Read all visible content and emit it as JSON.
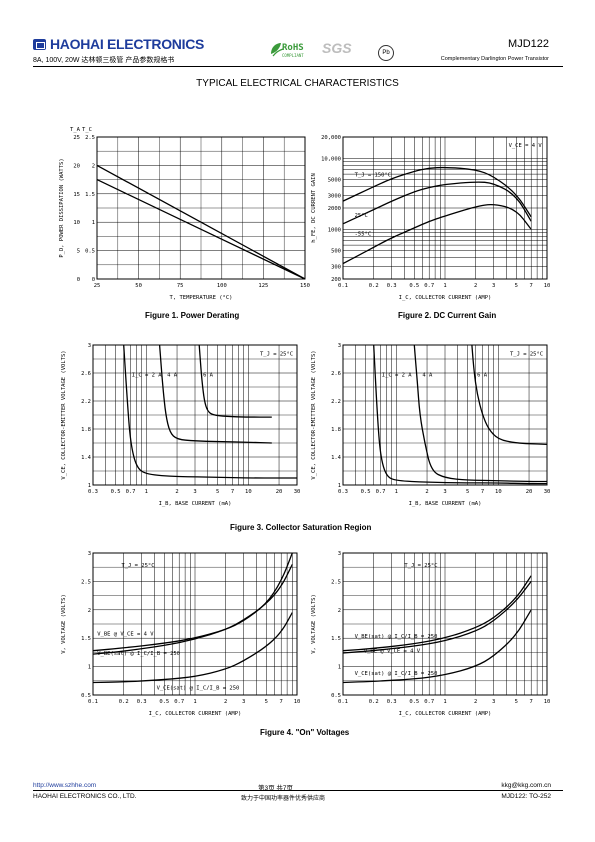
{
  "header": {
    "brand": "HAOHAI ELECTRONICS",
    "subtitle": "8A, 100V, 20W  达林顿三极管  产品参数规格书",
    "rohs": "RoHS",
    "rohs_sub": "COMPLIANT",
    "sgs": "SGS",
    "pb": "Pb",
    "part": "MJD122",
    "description": "Complementary Darlington Power Transistor"
  },
  "page_title": "TYPICAL ELECTRICAL CHARACTERISTICS",
  "figures": {
    "fig1_caption": "Figure 1. Power Derating",
    "fig2_caption": "Figure 2. DC Current Gain",
    "fig3_caption": "Figure 3. Collector Saturation Region",
    "fig4_caption": "Figure 4. \"On\" Voltages"
  },
  "footer": {
    "left_url": "http://www.szhhe.com",
    "left_company": "HAOHAI ELECTRONICS CO., LTD.",
    "center_page": "第3页 共7页",
    "center_slogan": "致力于中国功率器件优秀供应商",
    "right_email": "kkg@kkg.com.cn",
    "right_part": "MJD122: TO-252"
  },
  "chart_data": [
    {
      "type": "line",
      "title": "Figure 1. Power Derating",
      "xlabel": "T, TEMPERATURE (°C)",
      "ylabel": "P_D, POWER DISSIPATION (WATTS)",
      "xlim": [
        25,
        150
      ],
      "x_ticks": [
        "25",
        "50",
        "75",
        "100",
        "125",
        "150"
      ],
      "y_left_label": "T_A",
      "y_left_ticks": [
        "0",
        "0.5",
        "1",
        "1.5",
        "2",
        "2.5"
      ],
      "y_right_label": "T_C",
      "y_right_ticks": [
        "0",
        "5",
        "10",
        "15",
        "20",
        "25"
      ],
      "annotations": [
        "T_C",
        "T_A",
        "SURFACE",
        "MOUNT"
      ],
      "series": [
        {
          "name": "T_C",
          "x": [
            25,
            150
          ],
          "y": [
            20,
            0
          ]
        },
        {
          "name": "T_A",
          "x": [
            25,
            150
          ],
          "y": [
            1.75,
            0
          ]
        }
      ]
    },
    {
      "type": "line",
      "title": "Figure 2. DC Current Gain",
      "xlabel": "I_C, COLLECTOR CURRENT (AMP)",
      "ylabel": "h_FE, DC CURRENT GAIN",
      "log_x": true,
      "log_y": true,
      "xlim": [
        0.1,
        10
      ],
      "ylim": [
        200,
        20000
      ],
      "x_ticks": [
        "0.1",
        "0.2",
        "0.3",
        "0.5",
        "0.7",
        "1",
        "2",
        "3",
        "5",
        "7",
        "10"
      ],
      "y_ticks": [
        "200",
        "300",
        "500",
        "1000",
        "2000",
        "3000",
        "5000",
        "10,000",
        "20,000"
      ],
      "annotations": [
        "V_CE = 4 V",
        "T_J = 150°C",
        "25°C",
        "-55°C"
      ],
      "series": [
        {
          "name": "T_J = 150°C",
          "x": [
            0.1,
            0.2,
            0.3,
            0.5,
            0.7,
            1,
            2,
            3,
            5,
            7
          ],
          "y": [
            2500,
            4000,
            5200,
            6600,
            7300,
            7500,
            7000,
            5600,
            3200,
            1500
          ]
        },
        {
          "name": "25°C",
          "x": [
            0.1,
            0.2,
            0.3,
            0.5,
            0.7,
            1,
            2,
            3,
            5,
            7
          ],
          "y": [
            1200,
            1900,
            2500,
            3400,
            3900,
            4300,
            4700,
            4500,
            3000,
            1300
          ]
        },
        {
          "name": "-55°C",
          "x": [
            0.1,
            0.2,
            0.3,
            0.5,
            0.7,
            1,
            2,
            3,
            5,
            7
          ],
          "y": [
            330,
            560,
            760,
            1050,
            1300,
            1550,
            2100,
            2300,
            1900,
            1000
          ]
        }
      ]
    },
    {
      "type": "line",
      "title": "Figure 3. Collector Saturation Region (left)",
      "xlabel": "I_B, BASE CURRENT (mA)",
      "ylabel": "V_CE, COLLECTOR-EMITTER VOLTAGE (VOLTS)",
      "log_x": true,
      "xlim": [
        0.3,
        30
      ],
      "ylim": [
        1,
        3
      ],
      "x_ticks": [
        "0.3",
        "0.5",
        "0.7",
        "1",
        "2",
        "3",
        "5",
        "7",
        "10",
        "20",
        "30"
      ],
      "y_ticks": [
        "1",
        "1.4",
        "1.8",
        "2.2",
        "2.6",
        "3"
      ],
      "annotations": [
        "T_J = 25°C",
        "I_C = 2 A",
        "4 A",
        "6 A"
      ],
      "series": [
        {
          "name": "I_C = 2 A",
          "x": [
            0.6,
            0.65,
            0.7,
            0.8,
            1,
            2,
            5,
            10,
            20,
            30
          ],
          "y": [
            3,
            2.2,
            1.6,
            1.25,
            1.15,
            1.12,
            1.11,
            1.1,
            1.1,
            1.1
          ]
        },
        {
          "name": "4 A",
          "x": [
            1.35,
            1.45,
            1.55,
            1.7,
            2,
            3,
            5,
            10,
            17
          ],
          "y": [
            3,
            2.4,
            2.0,
            1.75,
            1.65,
            1.63,
            1.62,
            1.61,
            1.6
          ]
        },
        {
          "name": "6 A",
          "x": [
            3.3,
            3.5,
            3.7,
            4,
            4.5,
            6,
            10,
            17
          ],
          "y": [
            3,
            2.5,
            2.2,
            2.05,
            2.0,
            1.98,
            1.97,
            1.97
          ]
        }
      ]
    },
    {
      "type": "line",
      "title": "Figure 3. Collector Saturation Region (right)",
      "xlabel": "I_B, BASE CURRENT (mA)",
      "ylabel": "V_CE, COLLECTOR-EMITTER VOLTAGE (VOLTS)",
      "log_x": true,
      "xlim": [
        0.3,
        30
      ],
      "ylim": [
        1,
        3
      ],
      "x_ticks": [
        "0.3",
        "0.5",
        "0.7",
        "1",
        "2",
        "3",
        "5",
        "7",
        "10",
        "20",
        "30"
      ],
      "y_ticks": [
        "1",
        "1.4",
        "1.8",
        "2.2",
        "2.6",
        "3"
      ],
      "annotations": [
        "T_J = 25°C",
        "I_C = 2 A",
        "4 A",
        "6 A"
      ],
      "series": [
        {
          "name": "I_C = 2 A",
          "x": [
            0.6,
            0.65,
            0.7,
            0.8,
            1,
            2,
            5,
            10,
            20,
            30
          ],
          "y": [
            3,
            2.0,
            1.4,
            1.12,
            1.06,
            1.04,
            1.03,
            1.03,
            1.02,
            1.02
          ]
        },
        {
          "name": "4 A",
          "x": [
            1.5,
            1.6,
            1.7,
            1.9,
            2.2,
            3,
            5,
            10,
            20,
            30
          ],
          "y": [
            3,
            2.5,
            2.0,
            1.6,
            1.2,
            1.1,
            1.07,
            1.06,
            1.05,
            1.05
          ]
        },
        {
          "name": "6 A",
          "x": [
            5.5,
            5.8,
            6.2,
            7,
            8,
            10,
            15,
            20,
            30
          ],
          "y": [
            3,
            2.6,
            2.3,
            2.0,
            1.8,
            1.65,
            1.6,
            1.59,
            1.58
          ]
        }
      ]
    },
    {
      "type": "line",
      "title": "Figure 4. \"On\" Voltages (left)",
      "xlabel": "I_C, COLLECTOR CURRENT (AMP)",
      "ylabel": "V, VOLTAGE (VOLTS)",
      "log_x": true,
      "xlim": [
        0.1,
        10
      ],
      "ylim": [
        0.5,
        3
      ],
      "x_ticks": [
        "0.1",
        "0.2",
        "0.3",
        "0.5",
        "0.7",
        "1",
        "2",
        "3",
        "5",
        "7",
        "10"
      ],
      "y_ticks": [
        "0.5",
        "1",
        "1.5",
        "2",
        "2.5",
        "3"
      ],
      "annotations": [
        "T_J = 25°C",
        "V_BE @ V_CE = 4 V",
        "V_BE(sat) @ I_C/I_B = 250",
        "V_CE(sat) @ I_C/I_B = 250"
      ],
      "series": [
        {
          "name": "V_BE @ V_CE = 4 V",
          "x": [
            0.1,
            0.2,
            0.5,
            1,
            2,
            3,
            5,
            7,
            9
          ],
          "y": [
            1.28,
            1.33,
            1.41,
            1.5,
            1.65,
            1.8,
            2.1,
            2.5,
            3.0
          ]
        },
        {
          "name": "V_BE(sat) @ I_C/I_B = 250",
          "x": [
            0.1,
            0.2,
            0.5,
            1,
            2,
            3,
            5,
            7,
            9
          ],
          "y": [
            1.22,
            1.27,
            1.37,
            1.48,
            1.65,
            1.82,
            2.1,
            2.4,
            2.8
          ]
        },
        {
          "name": "V_CE(sat) @ I_C/I_B = 250",
          "x": [
            0.1,
            0.2,
            0.5,
            1,
            2,
            3,
            5,
            7,
            9
          ],
          "y": [
            0.72,
            0.73,
            0.77,
            0.82,
            0.95,
            1.1,
            1.35,
            1.6,
            1.95
          ]
        }
      ]
    },
    {
      "type": "line",
      "title": "Figure 4. \"On\" Voltages (right)",
      "xlabel": "I_C, COLLECTOR CURRENT (AMP)",
      "ylabel": "V, VOLTAGE (VOLTS)",
      "log_x": true,
      "xlim": [
        0.1,
        10
      ],
      "ylim": [
        0.5,
        3
      ],
      "x_ticks": [
        "0.1",
        "0.2",
        "0.3",
        "0.5",
        "0.7",
        "1",
        "2",
        "3",
        "5",
        "7",
        "10"
      ],
      "y_ticks": [
        "0.5",
        "1",
        "1.5",
        "2",
        "2.5",
        "3"
      ],
      "annotations": [
        "T_J = 25°C",
        "V_BE(sat) @ I_C/I_B = 250",
        "V_BE @ V_CE = 4 V",
        "V_CE(sat) @ I_C/I_B = 250"
      ],
      "series": [
        {
          "name": "V_BE(sat) @ I_C/I_B = 250",
          "x": [
            0.1,
            0.2,
            0.5,
            1,
            2,
            3,
            5,
            7
          ],
          "y": [
            1.28,
            1.32,
            1.4,
            1.5,
            1.68,
            1.85,
            2.2,
            2.6
          ]
        },
        {
          "name": "V_BE @ V_CE = 4 V",
          "x": [
            0.1,
            0.2,
            0.5,
            1,
            2,
            3,
            5,
            7
          ],
          "y": [
            1.24,
            1.28,
            1.36,
            1.45,
            1.62,
            1.8,
            2.15,
            2.5
          ]
        },
        {
          "name": "V_CE(sat) @ I_C/I_B = 250",
          "x": [
            0.1,
            0.2,
            0.5,
            1,
            2,
            3,
            5,
            7
          ],
          "y": [
            0.72,
            0.74,
            0.78,
            0.85,
            1.0,
            1.18,
            1.55,
            2.0
          ]
        }
      ]
    }
  ]
}
